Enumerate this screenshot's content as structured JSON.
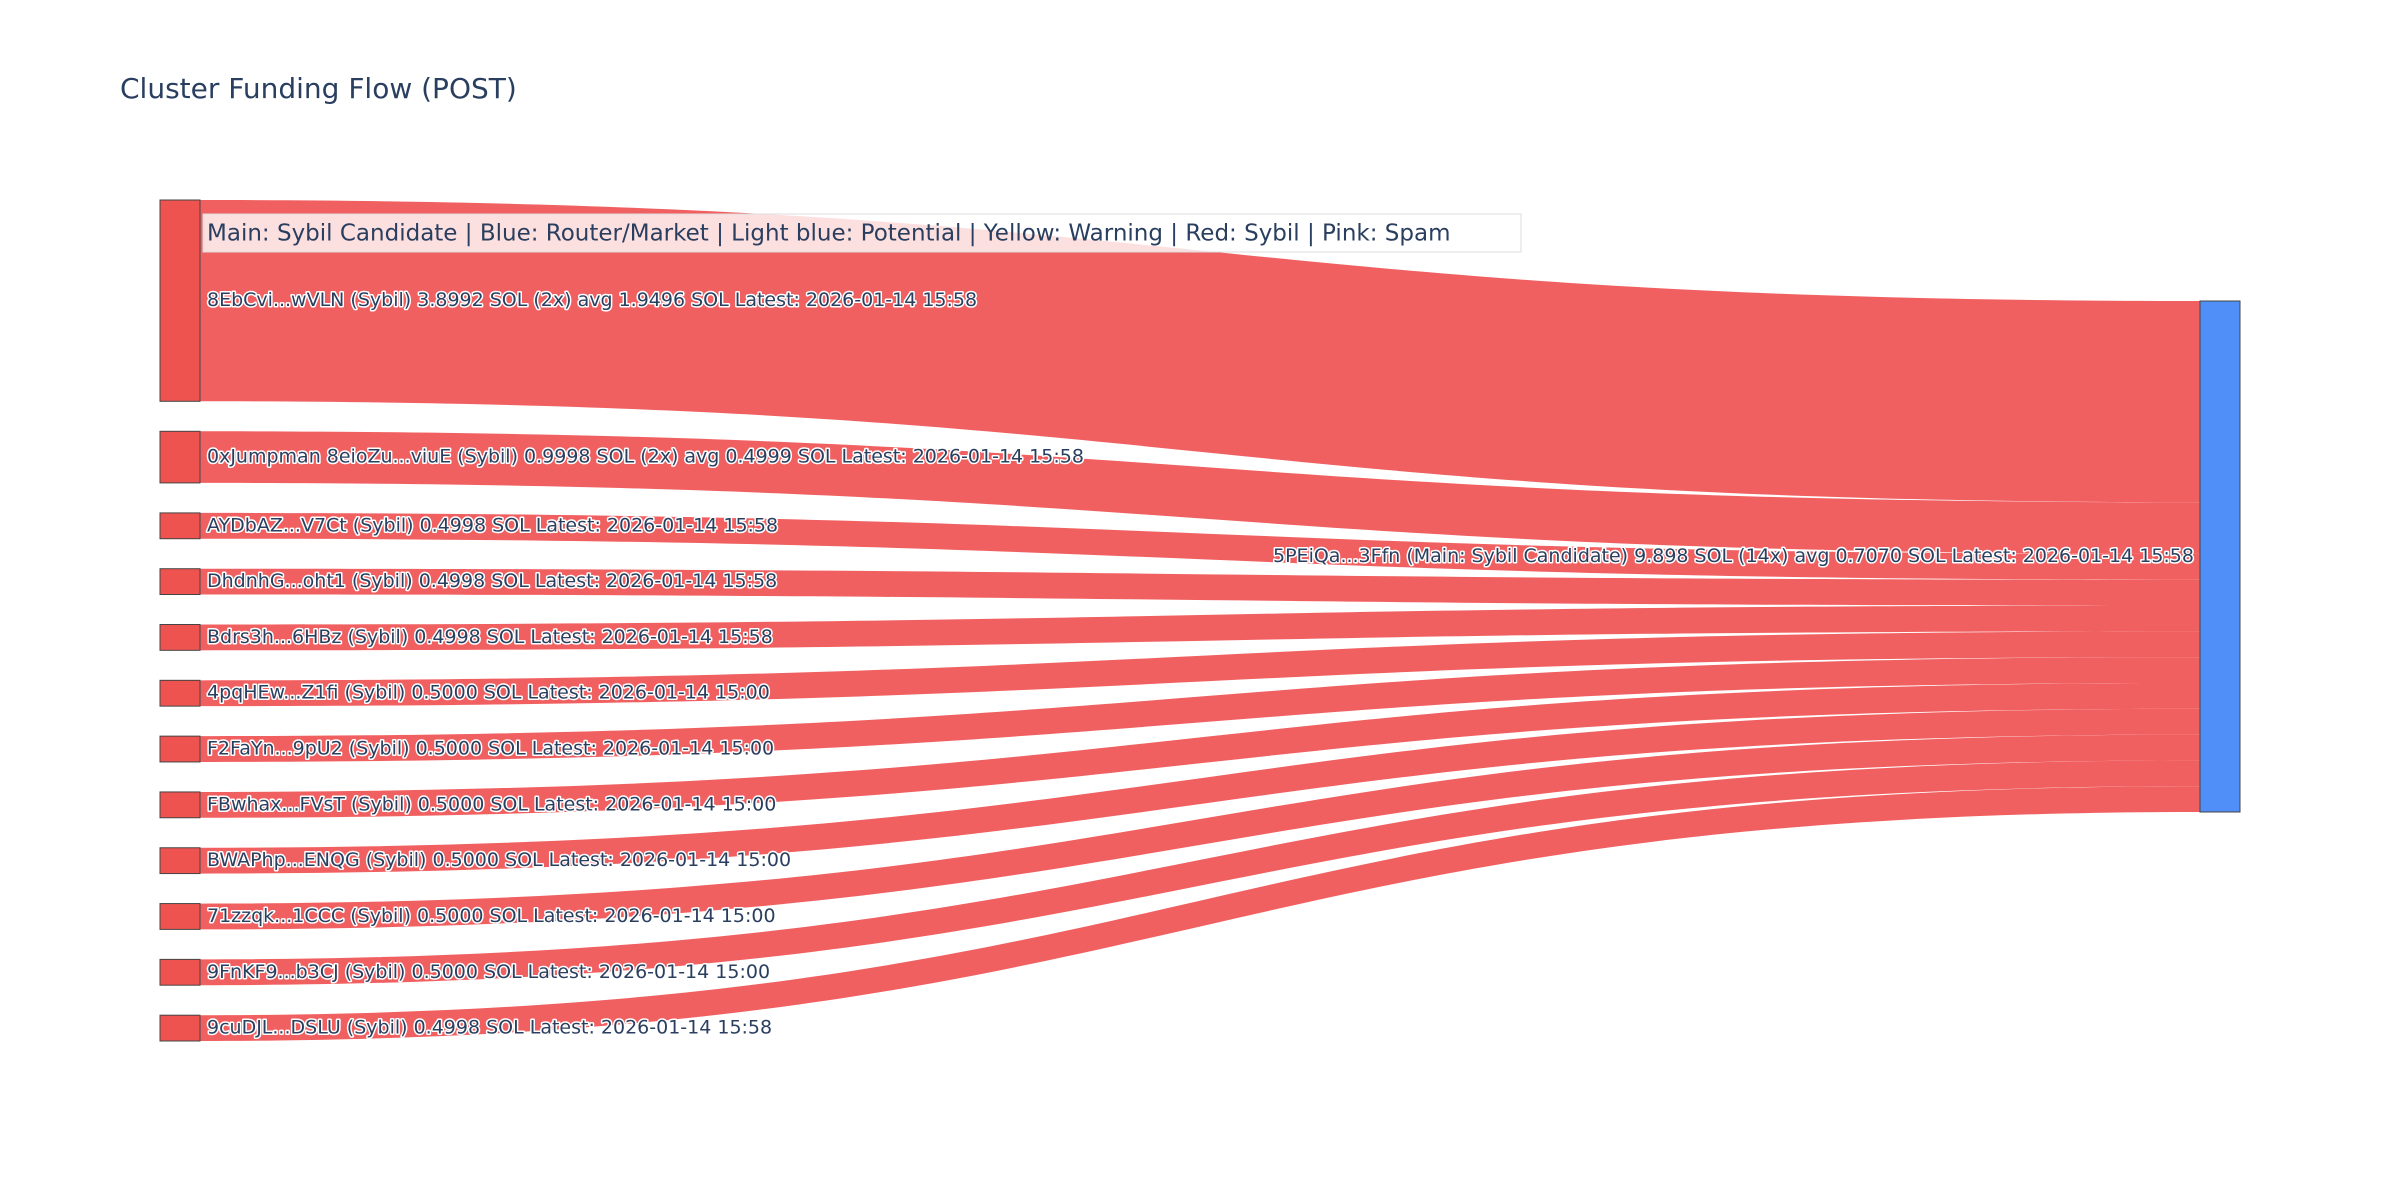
{
  "chart_data": {
    "type": "sankey",
    "title": "Cluster Funding Flow (POST)",
    "annotation": "Main: Sybil Candidate  |  Blue: Router/Market | Light blue: Potential | Yellow: Warning | Red: Sybil | Pink: Spam",
    "nodes": [
      {
        "label": "8EbCvi...wVLN (Sybil) 3.8992 SOL (2x) avg 1.9496 SOL Latest: 2026-01-14 15:58",
        "color": "#ef5350"
      },
      {
        "label": "0xJumpman 8eioZu...viuE (Sybil) 0.9998 SOL (2x) avg 0.4999 SOL Latest: 2026-01-14 15:58",
        "color": "#ef5350"
      },
      {
        "label": "AYDbAZ...V7Ct (Sybil) 0.4998 SOL Latest: 2026-01-14 15:58",
        "color": "#ef5350"
      },
      {
        "label": "DhdnhG...oht1 (Sybil) 0.4998 SOL Latest: 2026-01-14 15:58",
        "color": "#ef5350"
      },
      {
        "label": "Bdrs3h...6HBz (Sybil) 0.4998 SOL Latest: 2026-01-14 15:58",
        "color": "#ef5350"
      },
      {
        "label": "4pqHEw...Z1fi (Sybil) 0.5000 SOL Latest: 2026-01-14 15:00",
        "color": "#ef5350"
      },
      {
        "label": "F2FaYn...9pU2 (Sybil) 0.5000 SOL Latest: 2026-01-14 15:00",
        "color": "#ef5350"
      },
      {
        "label": "FBwhax...FVsT (Sybil) 0.5000 SOL Latest: 2026-01-14 15:00",
        "color": "#ef5350"
      },
      {
        "label": "BWAPhp...ENQG (Sybil) 0.5000 SOL Latest: 2026-01-14 15:00",
        "color": "#ef5350"
      },
      {
        "label": "71zzqk...1CCC (Sybil) 0.5000 SOL Latest: 2026-01-14 15:00",
        "color": "#ef5350"
      },
      {
        "label": "9FnKF9...b3CJ (Sybil) 0.5000 SOL Latest: 2026-01-14 15:00",
        "color": "#ef5350"
      },
      {
        "label": "9cuDJL...DSLU (Sybil) 0.4998 SOL Latest: 2026-01-14 15:58",
        "color": "#ef5350"
      },
      {
        "label": "5PEiQa...3Ffn (Main: Sybil Candidate) 9.898 SOL (14x) avg 0.7070 SOL Latest: 2026-01-14 15:58",
        "color": "#4f8ff7"
      }
    ],
    "link_color": "#f05759",
    "links": [
      {
        "source": 0,
        "target": 12,
        "value": 3.8992
      },
      {
        "source": 1,
        "target": 12,
        "value": 0.9998
      },
      {
        "source": 2,
        "target": 12,
        "value": 0.4998
      },
      {
        "source": 3,
        "target": 12,
        "value": 0.4998
      },
      {
        "source": 4,
        "target": 12,
        "value": 0.4998
      },
      {
        "source": 5,
        "target": 12,
        "value": 0.5
      },
      {
        "source": 6,
        "target": 12,
        "value": 0.5
      },
      {
        "source": 7,
        "target": 12,
        "value": 0.5
      },
      {
        "source": 8,
        "target": 12,
        "value": 0.5
      },
      {
        "source": 9,
        "target": 12,
        "value": 0.5
      },
      {
        "source": 10,
        "target": 12,
        "value": 0.5
      },
      {
        "source": 11,
        "target": 12,
        "value": 0.4998
      }
    ]
  }
}
